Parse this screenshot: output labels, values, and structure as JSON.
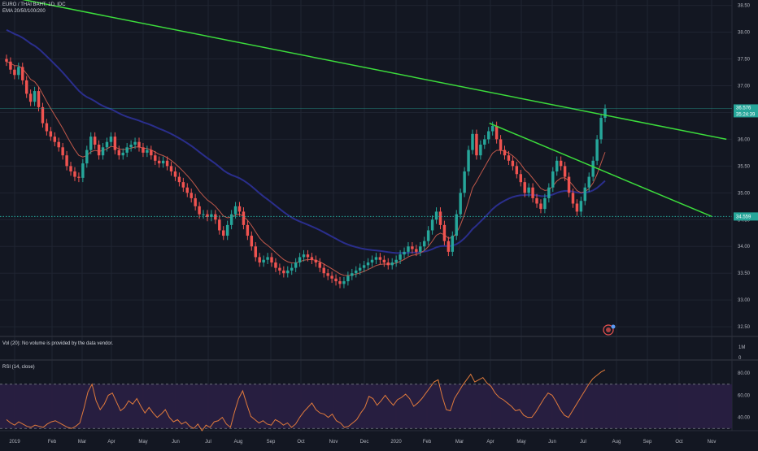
{
  "header": {
    "symbol": "EURO / THAI BAHT, 1D, IDC",
    "indicator": "EMA 20/50/100/200"
  },
  "volume_pane": {
    "label": "Vol (20): No volume is provided by the data vendor.",
    "ticks": [
      "1M",
      "0"
    ]
  },
  "rsi_pane": {
    "label": "RSI (14, close)",
    "ticks": [
      "80.00",
      "60.00",
      "40.00"
    ]
  },
  "price_labels": {
    "last": "36.576",
    "sub": "35:24:39",
    "support": "34.559"
  },
  "colors": {
    "background": "#131722",
    "grid": "#1f2431",
    "up": "#26a69a",
    "down": "#ef5350",
    "trendline": "#3cdc3c",
    "ema": "#c0584a",
    "ema_long": "#2a2e8c",
    "rsi": "#e07a3c",
    "rsi_band": "#2a1f44",
    "support_line": "#26a69a"
  },
  "chart_data": [
    {
      "type": "candlestick",
      "title": "EURO / THAI BAHT, 1D, IDC",
      "y_ticks": [
        32.5,
        33.0,
        33.5,
        34.0,
        34.5,
        35.0,
        35.5,
        36.0,
        36.5,
        37.0,
        37.5,
        38.0,
        38.5
      ],
      "ylim": [
        32.32,
        38.6
      ],
      "x_ticks": [
        "2019",
        "Feb",
        "Mar",
        "Apr",
        "May",
        "Jun",
        "Jul",
        "Aug",
        "Sep",
        "Oct",
        "Nov",
        "Dec",
        "2020",
        "Feb",
        "Mar",
        "Apr",
        "May",
        "Jun",
        "Jul",
        "Aug",
        "Sep",
        "Oct",
        "Nov"
      ],
      "grid": true,
      "close": [
        37.45,
        37.3,
        37.2,
        37.35,
        37.1,
        36.85,
        36.7,
        36.9,
        36.6,
        36.3,
        36.15,
        36.05,
        35.95,
        35.85,
        35.7,
        35.5,
        35.4,
        35.3,
        35.28,
        35.55,
        35.8,
        36.05,
        35.9,
        35.7,
        35.85,
        35.95,
        36.05,
        35.8,
        35.7,
        35.75,
        35.85,
        35.9,
        35.95,
        35.85,
        35.75,
        35.8,
        35.7,
        35.6,
        35.55,
        35.6,
        35.5,
        35.4,
        35.3,
        35.2,
        35.1,
        35.0,
        34.9,
        34.75,
        34.6,
        34.6,
        34.55,
        34.6,
        34.5,
        34.3,
        34.2,
        34.4,
        34.6,
        34.75,
        34.65,
        34.4,
        34.2,
        34.0,
        33.8,
        33.7,
        33.75,
        33.8,
        33.7,
        33.6,
        33.55,
        33.5,
        33.55,
        33.6,
        33.7,
        33.8,
        33.85,
        33.8,
        33.75,
        33.7,
        33.6,
        33.5,
        33.45,
        33.4,
        33.35,
        33.3,
        33.35,
        33.45,
        33.5,
        33.55,
        33.6,
        33.65,
        33.7,
        33.75,
        33.8,
        33.75,
        33.7,
        33.65,
        33.7,
        33.75,
        33.85,
        33.9,
        34.0,
        33.95,
        33.9,
        34.0,
        34.1,
        34.3,
        34.5,
        34.65,
        34.4,
        34.1,
        33.9,
        34.2,
        34.6,
        35.0,
        35.4,
        35.8,
        36.1,
        35.7,
        35.9,
        36.0,
        36.15,
        36.25,
        36.0,
        35.8,
        35.7,
        35.6,
        35.5,
        35.35,
        35.2,
        35.0,
        35.1,
        34.9,
        34.8,
        34.7,
        34.9,
        35.1,
        35.4,
        35.6,
        35.5,
        35.3,
        35.0,
        34.8,
        34.65,
        34.85,
        35.1,
        35.3,
        35.6,
        36.0,
        36.4,
        36.57
      ],
      "trendlines": [
        {
          "from": {
            "x": "2018-12-15",
            "y": 38.7
          },
          "to": {
            "x": "2020-12-15",
            "y": 36.0
          }
        },
        {
          "from": {
            "x": "2020-03-30",
            "y": 36.3
          },
          "to": {
            "x": "2020-12-01",
            "y": 34.56
          }
        }
      ],
      "support": 34.559,
      "last_price": 36.576
    },
    {
      "type": "line",
      "title": "RSI (14, close)",
      "y_ticks": [
        80,
        60,
        40
      ],
      "ylim": [
        28,
        86
      ],
      "bands": [
        30,
        70
      ],
      "values": [
        38,
        35,
        33,
        36,
        34,
        32,
        31,
        33,
        32,
        31,
        34,
        36,
        37,
        35,
        33,
        31,
        30,
        32,
        35,
        48,
        63,
        70,
        55,
        47,
        52,
        60,
        62,
        54,
        46,
        49,
        55,
        52,
        57,
        50,
        44,
        49,
        44,
        40,
        43,
        47,
        40,
        36,
        38,
        34,
        36,
        32,
        30,
        34,
        28,
        33,
        31,
        36,
        37,
        40,
        34,
        31,
        45,
        57,
        64,
        52,
        41,
        38,
        35,
        37,
        34,
        33,
        38,
        36,
        33,
        35,
        31,
        34,
        40,
        45,
        49,
        53,
        47,
        44,
        43,
        40,
        43,
        37,
        35,
        31,
        32,
        35,
        38,
        44,
        49,
        59,
        57,
        51,
        55,
        60,
        55,
        51,
        56,
        58,
        61,
        57,
        50,
        53,
        57,
        62,
        67,
        72,
        74,
        59,
        47,
        46,
        57,
        63,
        69,
        74,
        79,
        72,
        74,
        76,
        71,
        68,
        62,
        58,
        56,
        53,
        50,
        46,
        47,
        42,
        40,
        40,
        45,
        51,
        57,
        62,
        60,
        54,
        47,
        42,
        40,
        46,
        52,
        58,
        64,
        70,
        75,
        78,
        81,
        83
      ]
    }
  ]
}
